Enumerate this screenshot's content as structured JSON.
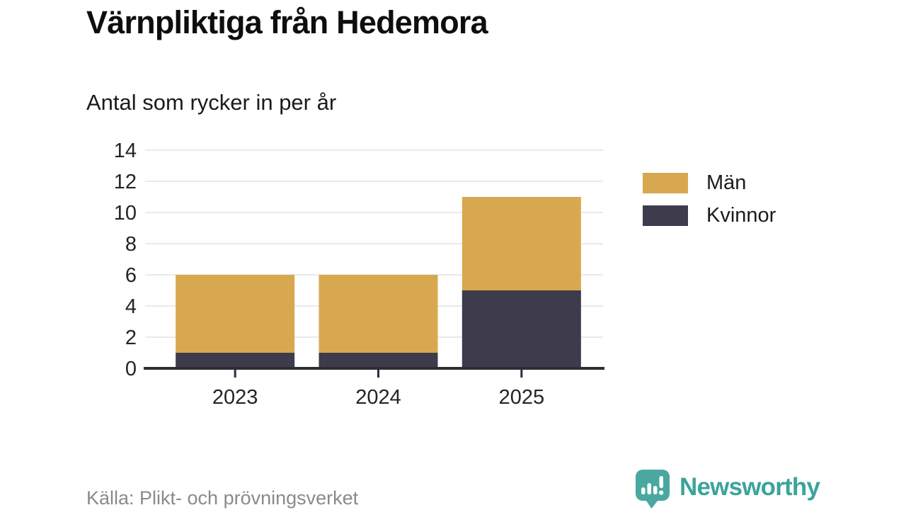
{
  "header": {
    "title": "Värnpliktiga från Hedemora",
    "subtitle": "Antal som rycker in per år"
  },
  "chart_data": {
    "type": "bar",
    "stacked": true,
    "categories": [
      "2023",
      "2024",
      "2025"
    ],
    "series": [
      {
        "name": "Män",
        "color": "#D8A850",
        "values": [
          5,
          5,
          6
        ]
      },
      {
        "name": "Kvinnor",
        "color": "#3D3B4C",
        "values": [
          1,
          1,
          5
        ]
      }
    ],
    "stack_order_bottom_to_top": [
      "Kvinnor",
      "Män"
    ],
    "totals": [
      6,
      6,
      11
    ],
    "ylim": [
      0,
      14
    ],
    "ytick_step": 2,
    "grid": true,
    "legend_position": "right",
    "title": "Värnpliktiga från Hedemora",
    "subtitle": "Antal som rycker in per år",
    "xlabel": "",
    "ylabel": ""
  },
  "footer": {
    "source": "Källa: Plikt- och prövningsverket",
    "brand": "Newsworthy"
  },
  "colors": {
    "axis": "#2d2c37",
    "grid": "#e3e3e3",
    "tick_text": "#242428",
    "muted_text": "#8a8a8a",
    "brand_teal_icon": "#4aa8a0",
    "brand_teal_text": "#3ba49a"
  }
}
